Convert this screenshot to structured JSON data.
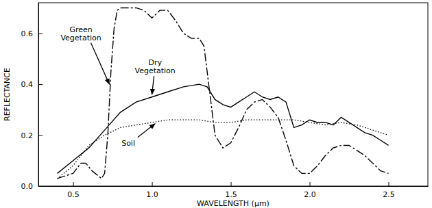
{
  "chart_data": {
    "type": "line",
    "x_label": "WAVELENGTH (μm)",
    "y_label": "REFLECTANCE",
    "xlim": [
      0.28,
      2.75
    ],
    "ylim": [
      0,
      0.72
    ],
    "xticks": [
      0.5,
      {
        "value": 1,
        "label": "1.0"
      },
      1.5,
      {
        "value": 2,
        "label": "2.0"
      },
      2.5
    ],
    "yticks": [
      {
        "value": 0,
        "label": "0.0"
      },
      0.2,
      0.4,
      0.6
    ],
    "grid": false,
    "series": [
      {
        "name": "Green Vegetation",
        "color": "#000000",
        "line_style": "long_dash_dot",
        "x": [
          0.4,
          0.45,
          0.5,
          0.55,
          0.58,
          0.62,
          0.66,
          0.68,
          0.7,
          0.72,
          0.74,
          0.76,
          0.78,
          0.8,
          0.85,
          0.9,
          0.95,
          1.0,
          1.05,
          1.1,
          1.15,
          1.2,
          1.25,
          1.3,
          1.33,
          1.36,
          1.38,
          1.4,
          1.45,
          1.5,
          1.55,
          1.6,
          1.65,
          1.7,
          1.75,
          1.8,
          1.85,
          1.9,
          1.95,
          2.0,
          2.05,
          2.1,
          2.15,
          2.2,
          2.25,
          2.3,
          2.35,
          2.4,
          2.45,
          2.5
        ],
        "values": [
          0.03,
          0.04,
          0.05,
          0.09,
          0.09,
          0.06,
          0.04,
          0.03,
          0.05,
          0.2,
          0.45,
          0.62,
          0.69,
          0.7,
          0.7,
          0.7,
          0.69,
          0.66,
          0.69,
          0.69,
          0.65,
          0.6,
          0.58,
          0.58,
          0.55,
          0.4,
          0.3,
          0.2,
          0.15,
          0.17,
          0.23,
          0.3,
          0.33,
          0.34,
          0.31,
          0.27,
          0.18,
          0.08,
          0.05,
          0.05,
          0.08,
          0.12,
          0.15,
          0.16,
          0.16,
          0.14,
          0.12,
          0.09,
          0.06,
          0.05
        ]
      },
      {
        "name": "Dry Vegetation",
        "color": "#000000",
        "line_style": "solid",
        "x": [
          0.4,
          0.5,
          0.6,
          0.7,
          0.8,
          0.9,
          1.0,
          1.1,
          1.2,
          1.3,
          1.35,
          1.4,
          1.45,
          1.5,
          1.55,
          1.6,
          1.65,
          1.7,
          1.75,
          1.8,
          1.85,
          1.9,
          1.95,
          2.0,
          2.05,
          2.1,
          2.15,
          2.2,
          2.25,
          2.3,
          2.35,
          2.4,
          2.45,
          2.5
        ],
        "values": [
          0.05,
          0.1,
          0.15,
          0.22,
          0.29,
          0.33,
          0.35,
          0.37,
          0.39,
          0.4,
          0.39,
          0.34,
          0.32,
          0.31,
          0.33,
          0.35,
          0.37,
          0.35,
          0.34,
          0.35,
          0.33,
          0.23,
          0.24,
          0.26,
          0.25,
          0.25,
          0.24,
          0.27,
          0.25,
          0.23,
          0.21,
          0.2,
          0.18,
          0.16
        ]
      },
      {
        "name": "Soil",
        "color": "#000000",
        "line_style": "dotted",
        "x": [
          0.4,
          0.5,
          0.6,
          0.7,
          0.8,
          0.9,
          1.0,
          1.1,
          1.2,
          1.3,
          1.4,
          1.5,
          1.6,
          1.7,
          1.8,
          1.9,
          2.0,
          2.1,
          2.2,
          2.3,
          2.4,
          2.5
        ],
        "values": [
          0.03,
          0.08,
          0.16,
          0.2,
          0.23,
          0.24,
          0.25,
          0.26,
          0.26,
          0.26,
          0.25,
          0.25,
          0.26,
          0.26,
          0.26,
          0.26,
          0.25,
          0.24,
          0.25,
          0.24,
          0.22,
          0.2
        ]
      }
    ],
    "annotations": [
      {
        "text": [
          "Green",
          "Vegetation"
        ],
        "text_x": 0.55,
        "text_y": 0.6,
        "x": 0.73,
        "y": 0.4
      },
      {
        "text": [
          "Dry",
          "Vegetation"
        ],
        "text_x": 1.02,
        "text_y": 0.47,
        "x": 1.0,
        "y": 0.36
      },
      {
        "text": [
          "Soil"
        ],
        "text_x": 0.85,
        "text_y": 0.17,
        "x": 1.02,
        "y": 0.245
      }
    ]
  }
}
